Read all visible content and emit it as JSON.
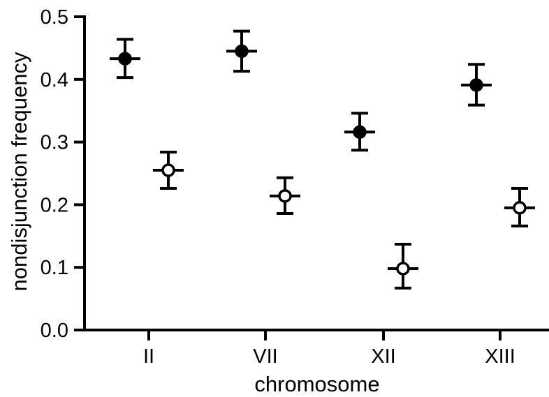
{
  "chart_data": {
    "type": "scatter",
    "title": "",
    "xlabel": "chromosome",
    "ylabel": "nondisjunction frequency",
    "categories": [
      "II",
      "VII",
      "XII",
      "XIII"
    ],
    "ylim": [
      0.0,
      0.5
    ],
    "yticks": [
      "0.0",
      "0.1",
      "0.2",
      "0.3",
      "0.4",
      "0.5"
    ],
    "grid": false,
    "legend": "none",
    "series": [
      {
        "marker": "filled-circle",
        "color": "#000000",
        "values": [
          0.433,
          0.445,
          0.316,
          0.391
        ],
        "err_low": [
          0.403,
          0.413,
          0.287,
          0.359
        ],
        "err_high": [
          0.464,
          0.477,
          0.346,
          0.424
        ]
      },
      {
        "marker": "open-circle",
        "color": "#000000",
        "values": [
          0.255,
          0.214,
          0.098,
          0.195
        ],
        "err_low": [
          0.226,
          0.186,
          0.067,
          0.166
        ],
        "err_high": [
          0.284,
          0.243,
          0.137,
          0.226
        ]
      }
    ]
  }
}
